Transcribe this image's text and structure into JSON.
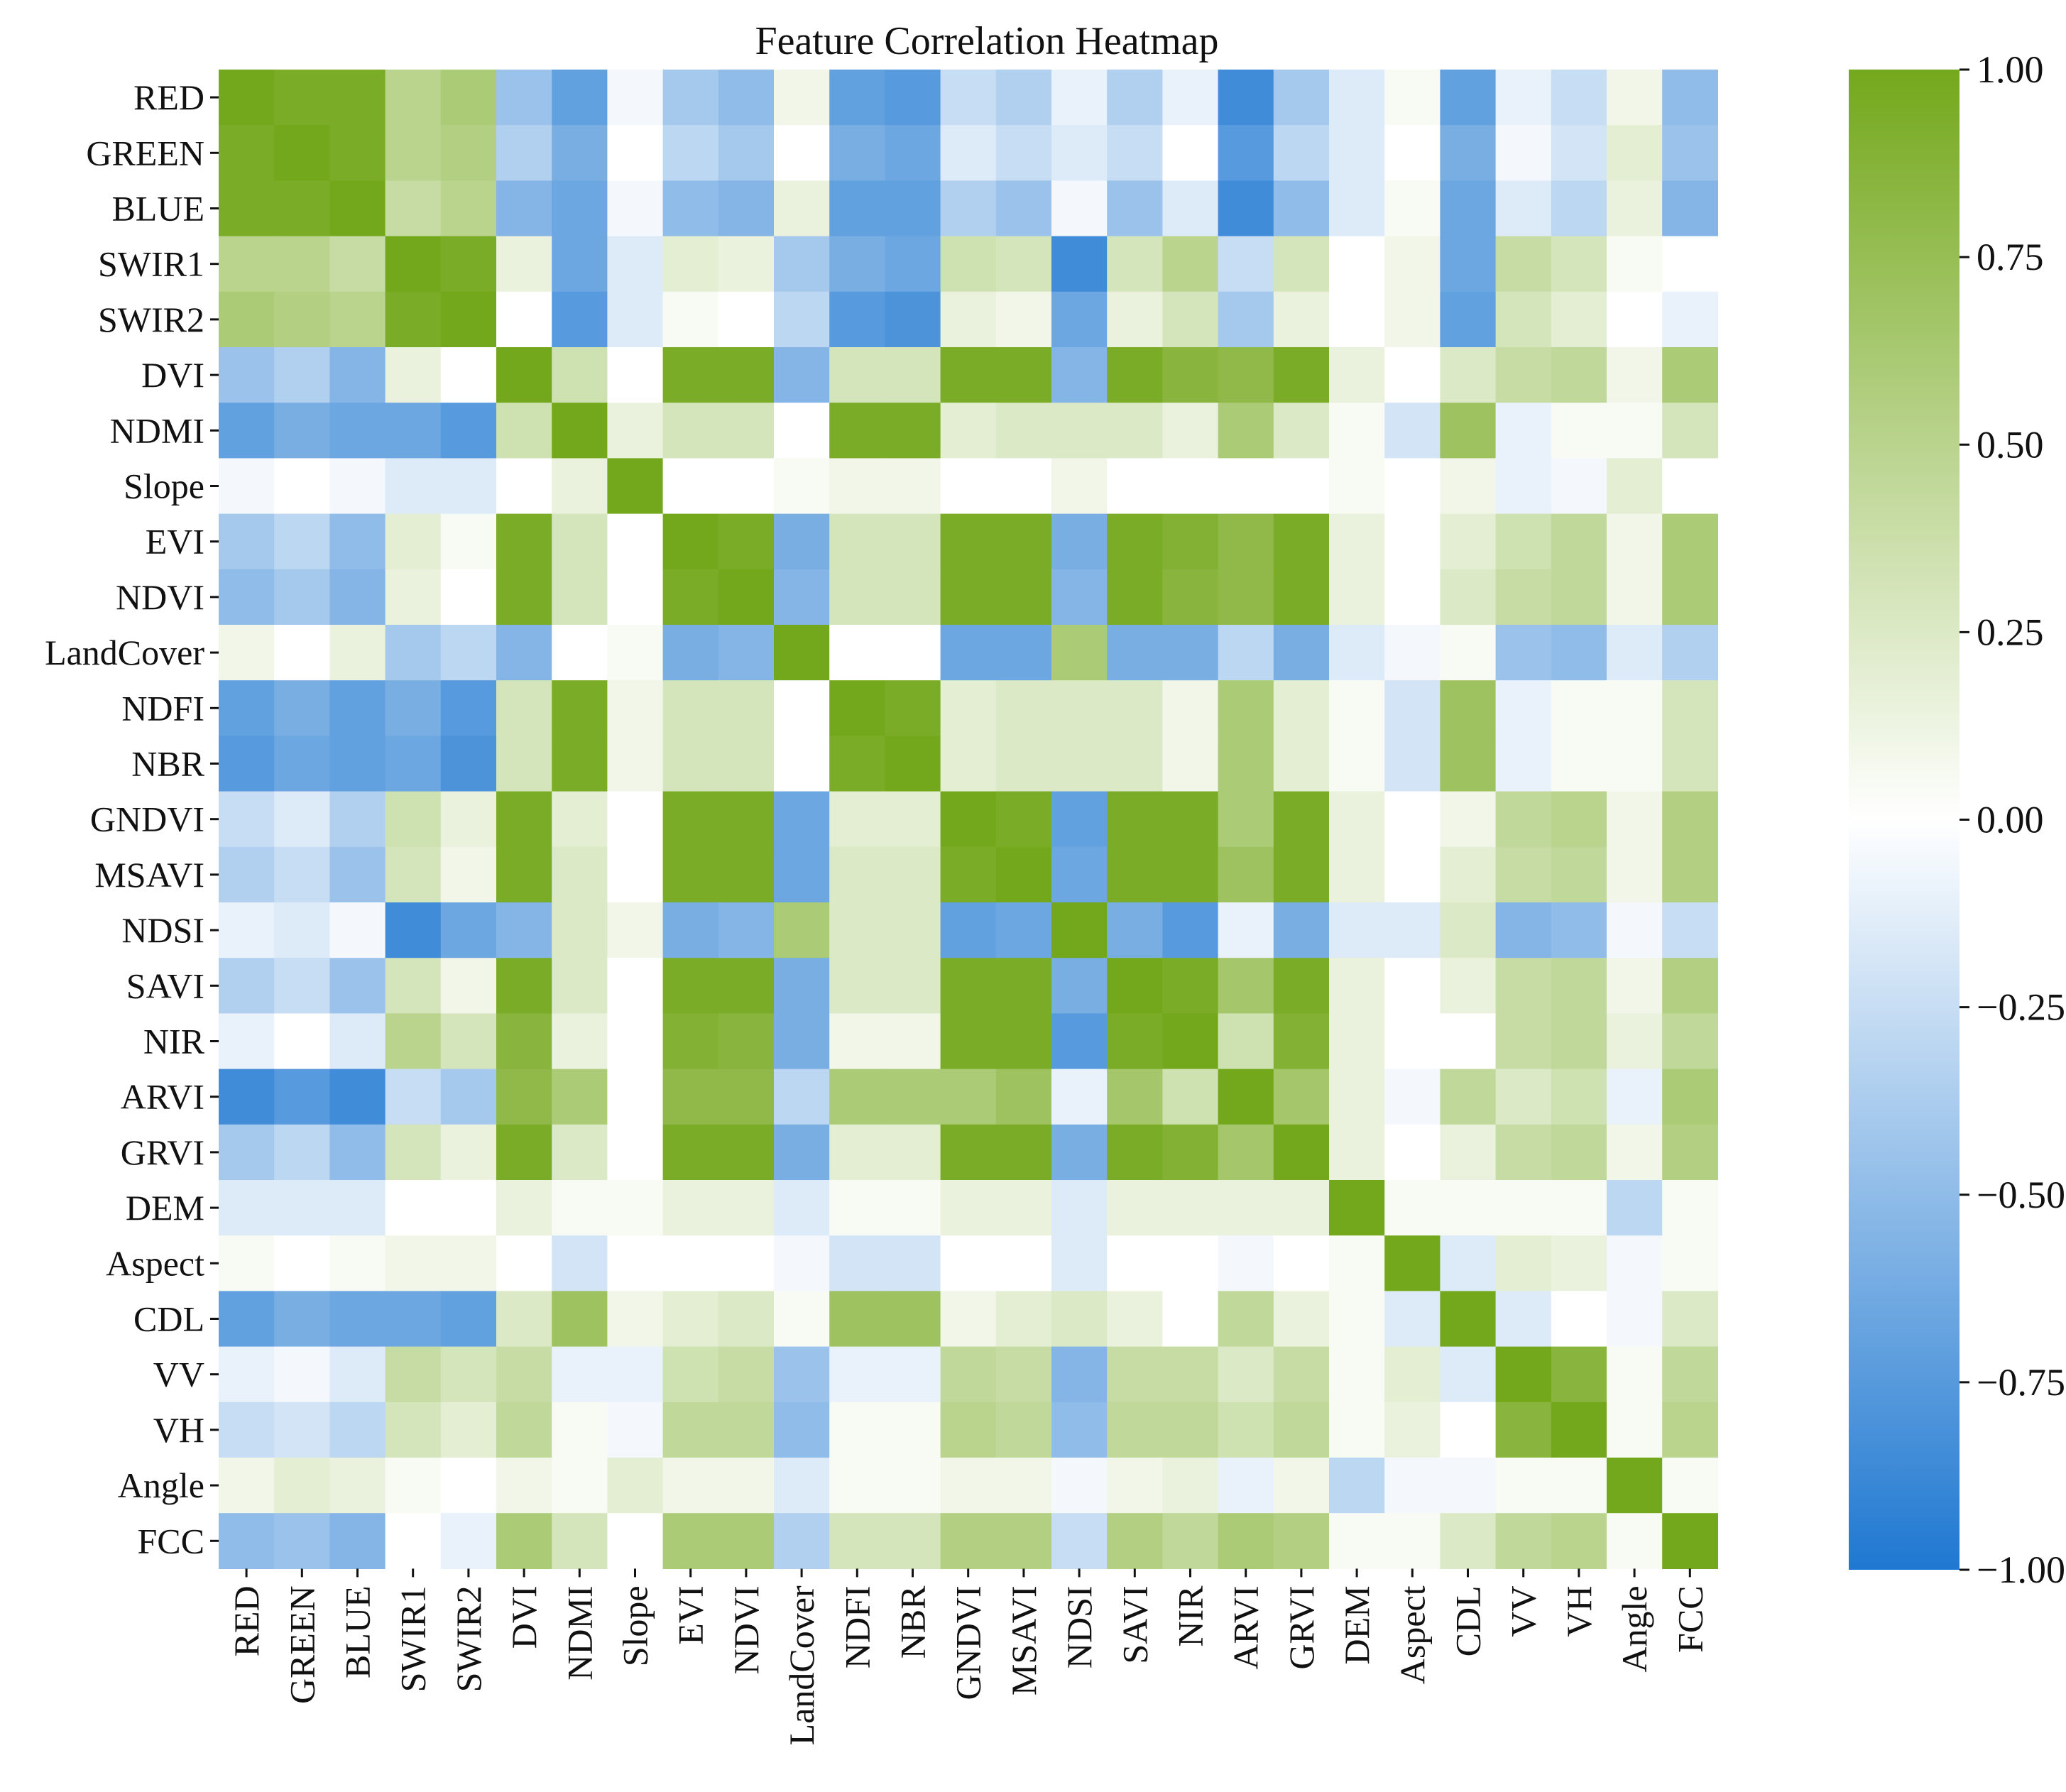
{
  "chart_data": {
    "type": "heatmap",
    "title": "Feature Correlation Heatmap",
    "labels": [
      "RED",
      "GREEN",
      "BLUE",
      "SWIR1",
      "SWIR2",
      "DVI",
      "NDMI",
      "Slope",
      "EVI",
      "NDVI",
      "LandCover",
      "NDFI",
      "NBR",
      "GNDVI",
      "MSAVI",
      "NDSI",
      "SAVI",
      "NIR",
      "ARVI",
      "GRVI",
      "DEM",
      "Aspect",
      "CDL",
      "VV",
      "VH",
      "Angle",
      "FCC"
    ],
    "value_range": [
      -1.0,
      1.0
    ],
    "colorbar_ticks": [
      {
        "value": 1.0,
        "label": "1.00"
      },
      {
        "value": 0.75,
        "label": "0.75"
      },
      {
        "value": 0.5,
        "label": "0.50"
      },
      {
        "value": 0.25,
        "label": "0.25"
      },
      {
        "value": 0.0,
        "label": "0.00"
      },
      {
        "value": -0.25,
        "label": "−0.25"
      },
      {
        "value": -0.5,
        "label": "−0.50"
      },
      {
        "value": -0.75,
        "label": "−0.75"
      },
      {
        "value": -1.0,
        "label": "−1.00"
      }
    ],
    "colors": {
      "negative": "#1f78d1",
      "zero": "#ffffff",
      "positive": "#74a81c"
    },
    "matrix": [
      [
        1.0,
        0.95,
        0.95,
        0.5,
        0.6,
        -0.45,
        -0.7,
        -0.05,
        -0.4,
        -0.5,
        0.1,
        -0.7,
        -0.75,
        -0.25,
        -0.35,
        -0.1,
        -0.35,
        -0.1,
        -0.85,
        -0.4,
        -0.15,
        0.05,
        -0.7,
        -0.1,
        -0.25,
        0.1,
        -0.5
      ],
      [
        0.95,
        1.0,
        0.95,
        0.5,
        0.55,
        -0.35,
        -0.6,
        0.0,
        -0.3,
        -0.4,
        0.0,
        -0.6,
        -0.65,
        -0.15,
        -0.25,
        -0.15,
        -0.25,
        0.0,
        -0.75,
        -0.3,
        -0.15,
        0.0,
        -0.6,
        -0.05,
        -0.2,
        0.2,
        -0.45
      ],
      [
        0.95,
        0.95,
        1.0,
        0.4,
        0.5,
        -0.55,
        -0.65,
        -0.05,
        -0.5,
        -0.55,
        0.15,
        -0.7,
        -0.7,
        -0.35,
        -0.45,
        -0.05,
        -0.45,
        -0.15,
        -0.85,
        -0.5,
        -0.15,
        0.05,
        -0.65,
        -0.15,
        -0.3,
        0.15,
        -0.55
      ],
      [
        0.5,
        0.5,
        0.4,
        1.0,
        0.95,
        0.15,
        -0.65,
        -0.15,
        0.2,
        0.15,
        -0.4,
        -0.6,
        -0.65,
        0.35,
        0.3,
        -0.85,
        0.3,
        0.5,
        -0.25,
        0.3,
        0.0,
        0.1,
        -0.65,
        0.4,
        0.3,
        0.05,
        0.0
      ],
      [
        0.6,
        0.55,
        0.5,
        0.95,
        1.0,
        0.0,
        -0.75,
        -0.15,
        0.05,
        0.0,
        -0.3,
        -0.75,
        -0.8,
        0.15,
        0.1,
        -0.65,
        0.15,
        0.3,
        -0.4,
        0.15,
        0.0,
        0.1,
        -0.7,
        0.3,
        0.2,
        0.0,
        -0.1
      ],
      [
        -0.45,
        -0.35,
        -0.55,
        0.15,
        0.0,
        1.0,
        0.35,
        0.0,
        0.95,
        0.95,
        -0.55,
        0.3,
        0.3,
        0.95,
        0.95,
        -0.55,
        0.95,
        0.85,
        0.8,
        0.95,
        0.15,
        0.0,
        0.25,
        0.4,
        0.45,
        0.1,
        0.6
      ],
      [
        -0.7,
        -0.6,
        -0.65,
        -0.65,
        -0.75,
        0.35,
        1.0,
        0.15,
        0.3,
        0.3,
        0.0,
        0.95,
        0.95,
        0.2,
        0.25,
        0.25,
        0.25,
        0.15,
        0.6,
        0.25,
        0.05,
        -0.2,
        0.7,
        -0.1,
        0.05,
        0.05,
        0.3
      ],
      [
        -0.05,
        0.0,
        -0.05,
        -0.15,
        -0.15,
        0.0,
        0.15,
        1.0,
        0.0,
        0.0,
        0.05,
        0.1,
        0.1,
        0.0,
        0.0,
        0.1,
        0.0,
        0.0,
        0.0,
        0.0,
        0.05,
        0.0,
        0.1,
        -0.1,
        -0.05,
        0.2,
        0.0
      ],
      [
        -0.4,
        -0.3,
        -0.5,
        0.2,
        0.05,
        0.95,
        0.3,
        0.0,
        1.0,
        0.95,
        -0.6,
        0.3,
        0.3,
        0.95,
        0.95,
        -0.6,
        0.95,
        0.9,
        0.8,
        0.95,
        0.15,
        0.0,
        0.2,
        0.35,
        0.45,
        0.1,
        0.6
      ],
      [
        -0.5,
        -0.4,
        -0.55,
        0.15,
        0.0,
        0.95,
        0.3,
        0.0,
        0.95,
        1.0,
        -0.55,
        0.3,
        0.3,
        0.95,
        0.95,
        -0.55,
        0.95,
        0.85,
        0.8,
        0.95,
        0.15,
        0.0,
        0.25,
        0.4,
        0.45,
        0.1,
        0.6
      ],
      [
        0.1,
        0.0,
        0.15,
        -0.4,
        -0.3,
        -0.55,
        0.0,
        0.05,
        -0.6,
        -0.55,
        1.0,
        0.0,
        0.0,
        -0.65,
        -0.65,
        0.6,
        -0.6,
        -0.6,
        -0.3,
        -0.6,
        -0.15,
        -0.05,
        0.05,
        -0.45,
        -0.5,
        -0.15,
        -0.35
      ],
      [
        -0.7,
        -0.6,
        -0.7,
        -0.6,
        -0.75,
        0.3,
        0.95,
        0.1,
        0.3,
        0.3,
        0.0,
        1.0,
        0.95,
        0.2,
        0.25,
        0.25,
        0.25,
        0.1,
        0.6,
        0.2,
        0.05,
        -0.2,
        0.7,
        -0.1,
        0.05,
        0.05,
        0.3
      ],
      [
        -0.75,
        -0.65,
        -0.7,
        -0.65,
        -0.8,
        0.3,
        0.95,
        0.1,
        0.3,
        0.3,
        0.0,
        0.95,
        1.0,
        0.2,
        0.25,
        0.25,
        0.25,
        0.1,
        0.6,
        0.2,
        0.05,
        -0.2,
        0.7,
        -0.1,
        0.05,
        0.05,
        0.3
      ],
      [
        -0.25,
        -0.15,
        -0.35,
        0.35,
        0.15,
        0.95,
        0.2,
        0.0,
        0.95,
        0.95,
        -0.65,
        0.2,
        0.2,
        1.0,
        0.95,
        -0.7,
        0.95,
        0.95,
        0.6,
        0.95,
        0.15,
        0.0,
        0.1,
        0.45,
        0.5,
        0.1,
        0.55
      ],
      [
        -0.35,
        -0.25,
        -0.45,
        0.3,
        0.1,
        0.95,
        0.25,
        0.0,
        0.95,
        0.95,
        -0.65,
        0.25,
        0.25,
        0.95,
        1.0,
        -0.65,
        0.95,
        0.95,
        0.7,
        0.95,
        0.15,
        0.0,
        0.2,
        0.4,
        0.45,
        0.1,
        0.55
      ],
      [
        -0.1,
        -0.15,
        -0.05,
        -0.85,
        -0.65,
        -0.55,
        0.25,
        0.1,
        -0.6,
        -0.55,
        0.6,
        0.25,
        0.25,
        -0.7,
        -0.65,
        1.0,
        -0.6,
        -0.75,
        -0.1,
        -0.6,
        -0.15,
        -0.15,
        0.25,
        -0.55,
        -0.5,
        -0.05,
        -0.25
      ],
      [
        -0.35,
        -0.25,
        -0.45,
        0.3,
        0.1,
        0.95,
        0.25,
        0.0,
        0.95,
        0.95,
        -0.6,
        0.25,
        0.25,
        0.95,
        0.95,
        -0.6,
        1.0,
        0.95,
        0.65,
        0.95,
        0.15,
        0.0,
        0.15,
        0.4,
        0.45,
        0.1,
        0.55
      ],
      [
        -0.1,
        0.0,
        -0.15,
        0.5,
        0.3,
        0.85,
        0.15,
        0.0,
        0.9,
        0.85,
        -0.6,
        0.1,
        0.1,
        0.95,
        0.95,
        -0.75,
        0.95,
        1.0,
        0.35,
        0.9,
        0.15,
        0.0,
        0.0,
        0.4,
        0.45,
        0.15,
        0.45
      ],
      [
        -0.85,
        -0.75,
        -0.85,
        -0.25,
        -0.4,
        0.8,
        0.6,
        0.0,
        0.8,
        0.8,
        -0.3,
        0.6,
        0.6,
        0.6,
        0.7,
        -0.1,
        0.65,
        0.35,
        1.0,
        0.65,
        0.15,
        -0.05,
        0.45,
        0.25,
        0.35,
        -0.1,
        0.6
      ],
      [
        -0.4,
        -0.3,
        -0.5,
        0.3,
        0.15,
        0.95,
        0.25,
        0.0,
        0.95,
        0.95,
        -0.6,
        0.2,
        0.2,
        0.95,
        0.95,
        -0.6,
        0.95,
        0.9,
        0.65,
        1.0,
        0.15,
        0.0,
        0.15,
        0.4,
        0.45,
        0.1,
        0.55
      ],
      [
        -0.15,
        -0.15,
        -0.15,
        0.0,
        0.0,
        0.15,
        0.05,
        0.05,
        0.15,
        0.15,
        -0.15,
        0.05,
        0.05,
        0.15,
        0.15,
        -0.15,
        0.15,
        0.15,
        0.15,
        0.15,
        1.0,
        0.05,
        0.05,
        0.05,
        0.05,
        -0.3,
        0.05
      ],
      [
        0.05,
        0.0,
        0.05,
        0.1,
        0.1,
        0.0,
        -0.2,
        0.0,
        0.0,
        0.0,
        -0.05,
        -0.2,
        -0.2,
        0.0,
        0.0,
        -0.15,
        0.0,
        0.0,
        -0.05,
        0.0,
        0.05,
        1.0,
        -0.15,
        0.2,
        0.15,
        -0.05,
        0.05
      ],
      [
        -0.7,
        -0.6,
        -0.65,
        -0.65,
        -0.7,
        0.25,
        0.7,
        0.1,
        0.2,
        0.25,
        0.05,
        0.7,
        0.7,
        0.1,
        0.2,
        0.25,
        0.15,
        0.0,
        0.45,
        0.15,
        0.05,
        -0.15,
        1.0,
        -0.15,
        0.0,
        -0.05,
        0.25
      ],
      [
        -0.1,
        -0.05,
        -0.15,
        0.4,
        0.3,
        0.4,
        -0.1,
        -0.1,
        0.35,
        0.4,
        -0.45,
        -0.1,
        -0.1,
        0.45,
        0.4,
        -0.55,
        0.4,
        0.4,
        0.25,
        0.4,
        0.05,
        0.2,
        -0.15,
        1.0,
        0.85,
        0.05,
        0.45
      ],
      [
        -0.25,
        -0.2,
        -0.3,
        0.3,
        0.2,
        0.45,
        0.05,
        -0.05,
        0.45,
        0.45,
        -0.5,
        0.05,
        0.05,
        0.5,
        0.45,
        -0.5,
        0.45,
        0.45,
        0.35,
        0.45,
        0.05,
        0.15,
        0.0,
        0.85,
        1.0,
        0.05,
        0.5
      ],
      [
        0.1,
        0.2,
        0.15,
        0.05,
        0.0,
        0.1,
        0.05,
        0.2,
        0.1,
        0.1,
        -0.15,
        0.05,
        0.05,
        0.1,
        0.1,
        -0.05,
        0.1,
        0.15,
        -0.1,
        0.1,
        -0.3,
        -0.05,
        -0.05,
        0.05,
        0.05,
        1.0,
        0.05
      ],
      [
        -0.5,
        -0.45,
        -0.55,
        0.0,
        -0.1,
        0.6,
        0.3,
        0.0,
        0.6,
        0.6,
        -0.35,
        0.3,
        0.3,
        0.55,
        0.55,
        -0.25,
        0.55,
        0.45,
        0.6,
        0.55,
        0.05,
        0.05,
        0.25,
        0.45,
        0.5,
        0.05,
        1.0
      ]
    ]
  }
}
